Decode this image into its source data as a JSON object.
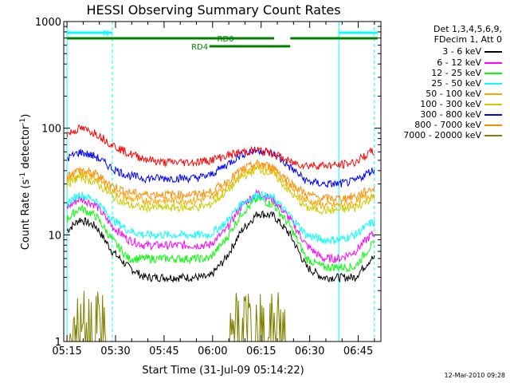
{
  "chart_data": {
    "type": "line",
    "title": "HESSI Observing Summary Count Rates",
    "xlabel": "Start Time (31-Jul-09 05:14:22)",
    "ylabel_parts": [
      "Count Rate (s",
      "-1",
      " detector",
      "-1",
      ")"
    ],
    "y_scale": "log",
    "ylim": [
      1,
      1000
    ],
    "xlim_minutes_after_0514": [
      0,
      98
    ],
    "x_tick_labels": [
      "05:15",
      "05:30",
      "05:45",
      "06:00",
      "06:15",
      "06:30",
      "06:45"
    ],
    "x_tick_minutes": [
      1,
      16,
      31,
      46,
      61,
      76,
      91
    ],
    "y_tick_labels": [
      "1",
      "10",
      "100",
      "1000"
    ],
    "y_tick_values": [
      1,
      10,
      100,
      1000
    ],
    "legend_header": [
      "Det 1,3,4,5,6,9,",
      "FDecim 1, Att 0"
    ],
    "series": [
      {
        "name": "3 - 6 keV",
        "color": "#000000",
        "approx_x_min": [
          1,
          5,
          10,
          15,
          20,
          25,
          30,
          35,
          40,
          45,
          50,
          55,
          60,
          65,
          70,
          75,
          80,
          85,
          90,
          95
        ],
        "approx_y": [
          11,
          14,
          12,
          7,
          5,
          4,
          4,
          4,
          4,
          4,
          6,
          11,
          16,
          15,
          10,
          5,
          4,
          4,
          4,
          6
        ]
      },
      {
        "name": "6 - 12 keV",
        "color": "#ff00ff",
        "approx_x_min": [
          1,
          5,
          10,
          15,
          20,
          25,
          30,
          35,
          40,
          45,
          50,
          55,
          60,
          65,
          70,
          75,
          80,
          85,
          90,
          95
        ],
        "approx_y": [
          18,
          22,
          19,
          12,
          9,
          8,
          8,
          8,
          8,
          8,
          11,
          19,
          25,
          21,
          14,
          8,
          6,
          6,
          7,
          10
        ]
      },
      {
        "name": "12 - 25 keV",
        "color": "#00ff00",
        "approx_x_min": [
          1,
          5,
          10,
          15,
          20,
          25,
          30,
          35,
          40,
          45,
          50,
          55,
          60,
          65,
          70,
          75,
          80,
          85,
          90,
          95
        ],
        "approx_y": [
          14,
          18,
          15,
          9,
          6,
          6,
          6,
          6,
          6,
          6,
          9,
          16,
          22,
          19,
          12,
          6,
          5,
          5,
          5,
          8
        ]
      },
      {
        "name": "25 - 50 keV",
        "color": "#00ffff",
        "approx_x_min": [
          1,
          5,
          10,
          15,
          20,
          25,
          30,
          35,
          40,
          45,
          50,
          55,
          60,
          65,
          70,
          75,
          80,
          85,
          90,
          95
        ],
        "approx_y": [
          20,
          24,
          21,
          14,
          11,
          10,
          10,
          10,
          10,
          10,
          13,
          20,
          24,
          22,
          15,
          10,
          9,
          9,
          10,
          13
        ]
      },
      {
        "name": "50 - 100 keV",
        "color": "#ffa500",
        "approx_x_min": [
          1,
          5,
          10,
          15,
          20,
          25,
          30,
          35,
          40,
          45,
          50,
          55,
          60,
          65,
          70,
          75,
          80,
          85,
          90,
          95
        ],
        "approx_y": [
          33,
          38,
          34,
          26,
          22,
          21,
          21,
          21,
          21,
          22,
          28,
          38,
          45,
          40,
          28,
          21,
          19,
          19,
          20,
          24
        ]
      },
      {
        "name": "100 - 300 keV",
        "color": "#cccc00",
        "approx_x_min": [
          1,
          5,
          10,
          15,
          20,
          25,
          30,
          35,
          40,
          45,
          50,
          55,
          60,
          65,
          70,
          75,
          80,
          85,
          90,
          95
        ],
        "approx_y": [
          30,
          35,
          31,
          23,
          19,
          18,
          18,
          18,
          18,
          19,
          25,
          35,
          42,
          37,
          25,
          18,
          17,
          17,
          18,
          22
        ]
      },
      {
        "name": "300 - 800 keV",
        "color": "#0000ff",
        "approx_x_min": [
          1,
          5,
          10,
          15,
          20,
          25,
          30,
          35,
          40,
          45,
          50,
          55,
          60,
          65,
          70,
          75,
          80,
          85,
          90,
          95
        ],
        "approx_y": [
          52,
          60,
          54,
          42,
          36,
          34,
          34,
          34,
          34,
          36,
          45,
          57,
          63,
          57,
          43,
          32,
          30,
          30,
          32,
          40
        ]
      },
      {
        "name": "800 - 7000 keV",
        "color": "#ff8c00",
        "approx_x_min": [
          1,
          5,
          10,
          15,
          20,
          25,
          30,
          35,
          40,
          45,
          50,
          55,
          60,
          65,
          70,
          75,
          80,
          85,
          90,
          95
        ],
        "approx_y": [
          36,
          41,
          37,
          29,
          25,
          24,
          24,
          24,
          24,
          25,
          31,
          41,
          47,
          43,
          31,
          24,
          22,
          22,
          23,
          27
        ]
      },
      {
        "name": "7000 - 20000 keV",
        "color": "#808000",
        "approx_x_min": [
          1,
          5,
          10,
          15,
          20,
          25,
          30,
          35,
          40,
          45,
          50,
          55,
          60,
          65,
          70,
          75,
          80,
          85,
          90,
          95
        ],
        "approx_y": [
          1,
          2.4,
          1.6,
          1,
          1,
          1,
          1,
          1,
          1,
          1,
          1,
          2,
          3,
          2,
          1,
          1,
          1,
          1,
          1,
          1
        ]
      },
      {
        "name": "",
        "color": "#ff0000",
        "approx_x_min": [
          1,
          5,
          10,
          15,
          20,
          25,
          30,
          35,
          40,
          45,
          50,
          55,
          60,
          65,
          70,
          75,
          80,
          85,
          90,
          95
        ],
        "approx_y": [
          88,
          100,
          90,
          70,
          58,
          52,
          48,
          48,
          48,
          50,
          55,
          60,
          62,
          58,
          48,
          45,
          45,
          45,
          48,
          60
        ]
      }
    ],
    "attenuator_bars": [
      {
        "label": "N",
        "color": "#00ffff",
        "segments": [
          [
            1,
            15
          ],
          [
            85,
            97
          ]
        ]
      },
      {
        "label": "RD0",
        "color": "#008000",
        "segments": [
          [
            1,
            65
          ],
          [
            70,
            97
          ]
        ]
      },
      {
        "label": "RD4",
        "color": "#008000",
        "segments": [
          [
            45,
            70
          ]
        ]
      }
    ],
    "vertical_lines": [
      {
        "color": "#00ffff",
        "style": "solid",
        "x_min": 1
      },
      {
        "color": "#00ffff",
        "style": "dashed",
        "x_min": 15
      },
      {
        "color": "#00ffff",
        "style": "solid",
        "x_min": 85
      },
      {
        "color": "#00ffff",
        "style": "dashed",
        "x_min": 96
      }
    ]
  },
  "legend": {
    "header_line1": "Det 1,3,4,5,6,9,",
    "header_line2": "FDecim 1, Att 0",
    "items": [
      {
        "label": "3 - 6 keV",
        "color": "#000000"
      },
      {
        "label": "6 - 12 keV",
        "color": "#ff00ff"
      },
      {
        "label": "12 - 25 keV",
        "color": "#00ff00"
      },
      {
        "label": "25 - 50 keV",
        "color": "#00ffff"
      },
      {
        "label": "50 - 100 keV",
        "color": "#ffa500"
      },
      {
        "label": "100 - 300 keV",
        "color": "#cccc00"
      },
      {
        "label": "300 - 800 keV",
        "color": "#0000ff"
      },
      {
        "label": "800 - 7000 keV",
        "color": "#ff8c00"
      },
      {
        "label": "7000 - 20000 keV",
        "color": "#808000"
      }
    ]
  },
  "timestamp": "12-Mar-2010 09:28"
}
